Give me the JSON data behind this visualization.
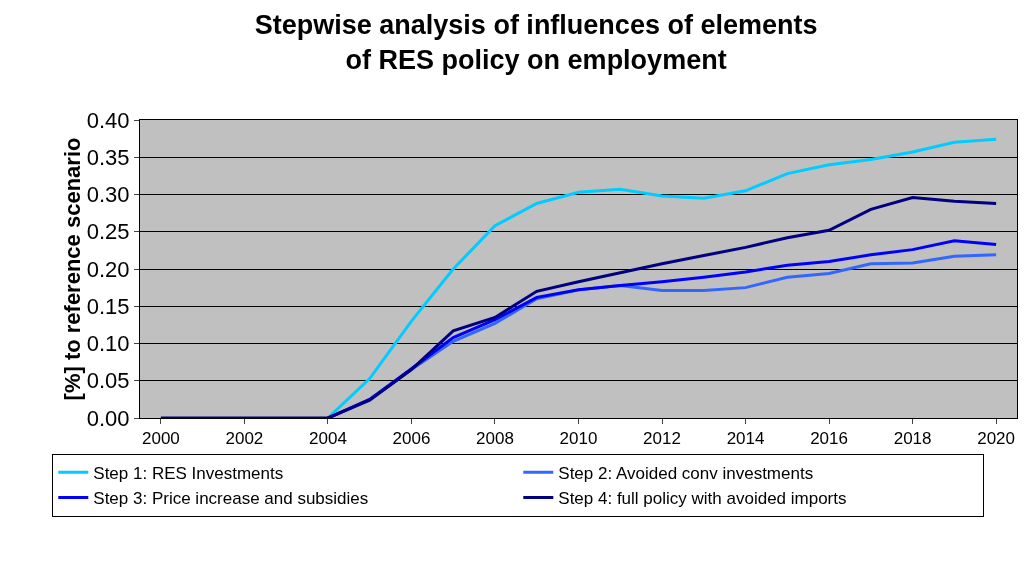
{
  "chart_data": {
    "type": "line",
    "title": "Stepwise analysis of influences of elements of RES policy on employment",
    "ylabel": "[%] to reference scenario",
    "categories": [
      "2000",
      null,
      "2002",
      null,
      "2004",
      null,
      "2006",
      null,
      "2008",
      null,
      "2010",
      null,
      "2012",
      null,
      "2014",
      null,
      "2016",
      null,
      "2018",
      null,
      "2020"
    ],
    "series": [
      {
        "name": "Step 1: RES Investments",
        "color": "#00ccff",
        "values": [
          null,
          null,
          null,
          null,
          0,
          0.053,
          0.13,
          0.2,
          0.258,
          0.288,
          0.303,
          0.307,
          0.298,
          0.295,
          0.305,
          0.328,
          0.34,
          0.347,
          0.357,
          0.37,
          0.374
        ]
      },
      {
        "name": "Step 2: Avoided conv investments",
        "color": "#3366ff",
        "values": [
          null,
          null,
          null,
          null,
          0,
          0.025,
          0.065,
          0.103,
          0.127,
          0.16,
          0.172,
          0.178,
          0.171,
          0.171,
          0.175,
          0.189,
          0.194,
          0.207,
          0.208,
          0.217,
          0.219
        ]
      },
      {
        "name": "Step 3: Price increase and subsidies",
        "color": "#0000ff",
        "values": [
          null,
          null,
          null,
          null,
          0,
          0.025,
          0.066,
          0.108,
          0.132,
          0.162,
          0.172,
          0.178,
          0.183,
          0.189,
          0.196,
          0.205,
          0.21,
          0.219,
          0.226,
          0.238,
          0.233
        ]
      },
      {
        "name": "Step 4: full policy with avoided imports",
        "color": "#000080",
        "values": [
          0,
          0,
          0,
          0,
          0,
          0.024,
          0.065,
          0.117,
          0.135,
          0.17,
          0.183,
          0.195,
          0.207,
          0.218,
          0.229,
          0.242,
          0.252,
          0.28,
          0.296,
          0.291,
          0.288
        ]
      }
    ],
    "ylim": [
      0,
      0.4
    ],
    "yticks": [
      {
        "value": 0,
        "label": "0.00"
      },
      {
        "value": 0.05,
        "label": "0.05"
      },
      {
        "value": 0.1,
        "label": "0.10"
      },
      {
        "value": 0.15,
        "label": "0.15"
      },
      {
        "value": 0.2,
        "label": "0.20"
      },
      {
        "value": 0.25,
        "label": "0.25"
      },
      {
        "value": 0.3,
        "label": "0.30"
      },
      {
        "value": 0.35,
        "label": "0.35"
      },
      {
        "value": 0.4,
        "label": "0.40"
      }
    ],
    "grid": "y",
    "legend": "bottom",
    "marker": "none",
    "line_style": "solid"
  }
}
